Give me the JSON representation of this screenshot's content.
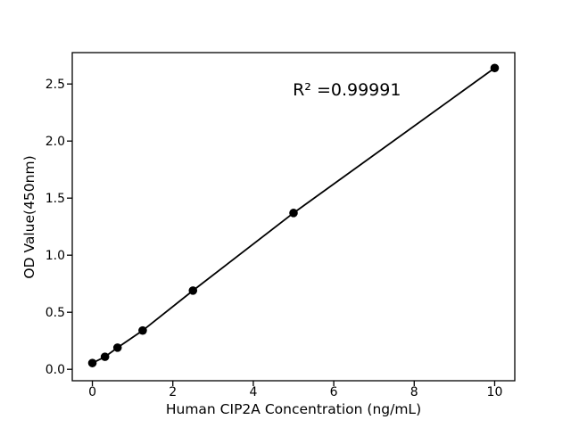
{
  "figure": {
    "background_color": "#ffffff",
    "foreground_color": "#000000"
  },
  "chart_data": {
    "type": "scatter",
    "title": "",
    "xlabel": "Human CIP2A Concentration (ng/mL)",
    "ylabel": "OD Value(450nm)",
    "annotation": {
      "text": "R² =0.99991",
      "x": 4.98,
      "y": 2.4
    },
    "xlim": [
      -0.5,
      10.5
    ],
    "ylim": [
      -0.1,
      2.775
    ],
    "x_ticks": [
      0,
      2,
      4,
      6,
      8,
      10
    ],
    "x_tick_labels": [
      "0",
      "2",
      "4",
      "6",
      "8",
      "10"
    ],
    "y_ticks": [
      0.0,
      0.5,
      1.0,
      1.5,
      2.0,
      2.5
    ],
    "y_tick_labels": [
      "0.0",
      "0.5",
      "1.0",
      "1.5",
      "2.0",
      "2.5"
    ],
    "grid": false,
    "legend": false,
    "series": [
      {
        "name": "standard-curve",
        "marker": "circle",
        "color": "#000000",
        "x": [
          0,
          0.313,
          0.625,
          1.25,
          2.5,
          5,
          10
        ],
        "y": [
          0.055,
          0.11,
          0.19,
          0.34,
          0.69,
          1.37,
          2.64
        ]
      }
    ]
  }
}
